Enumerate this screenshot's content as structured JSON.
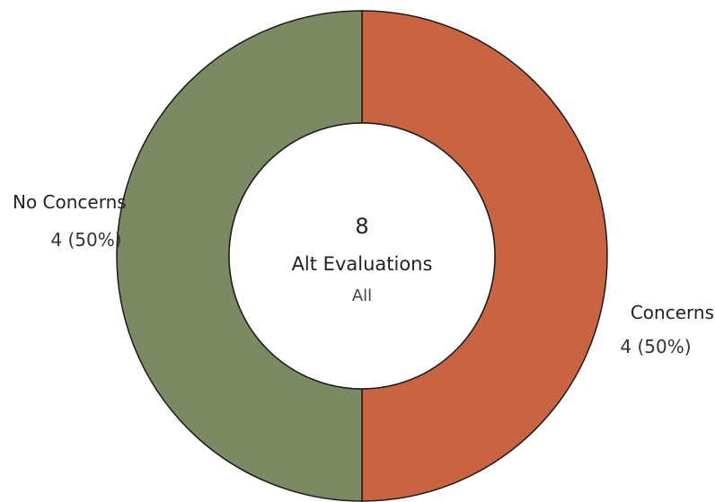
{
  "chart_data": {
    "type": "pie",
    "variant": "donut",
    "center": {
      "total": "8",
      "title": "Alt Evaluations",
      "subtitle": "All"
    },
    "slices": [
      {
        "name": "Concerns",
        "value": 4,
        "label_value": "4 (50%)",
        "color": "#c96443",
        "label_side": "right"
      },
      {
        "name": "No Concerns",
        "value": 4,
        "label_value": "4 (50%)",
        "color": "#7b8a62",
        "label_side": "left"
      }
    ]
  }
}
